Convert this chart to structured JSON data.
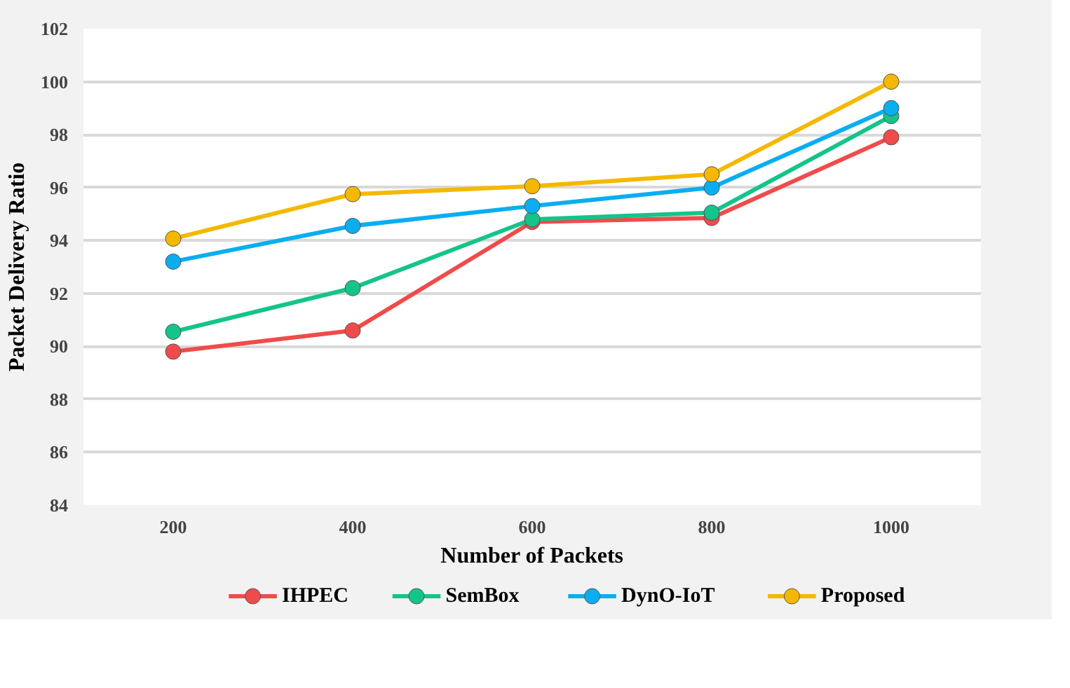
{
  "chart_data": {
    "type": "line",
    "xlabel": "Number of Packets",
    "ylabel": "Packet Delivery Ratio",
    "categories": [
      "200",
      "400",
      "600",
      "800",
      "1000"
    ],
    "series": [
      {
        "name": "IHPEC",
        "color": "#f04b4b",
        "values": [
          89.8,
          90.6,
          94.7,
          94.85,
          97.9
        ]
      },
      {
        "name": "SemBox",
        "color": "#14c48a",
        "values": [
          90.55,
          92.2,
          94.8,
          95.05,
          98.7
        ]
      },
      {
        "name": "DynO-IoT",
        "color": "#0aaef0",
        "values": [
          93.2,
          94.55,
          95.3,
          96.0,
          99.0
        ]
      },
      {
        "name": "Proposed",
        "color": "#f5b800",
        "values": [
          94.07,
          95.75,
          96.05,
          96.5,
          100.0
        ]
      }
    ],
    "ylim": [
      84,
      102
    ],
    "yticks": [
      84,
      86,
      88,
      90,
      92,
      94,
      96,
      98,
      100,
      102
    ],
    "grid": "y",
    "legend": "bottom",
    "marker": "circle",
    "line_style": "solid"
  }
}
